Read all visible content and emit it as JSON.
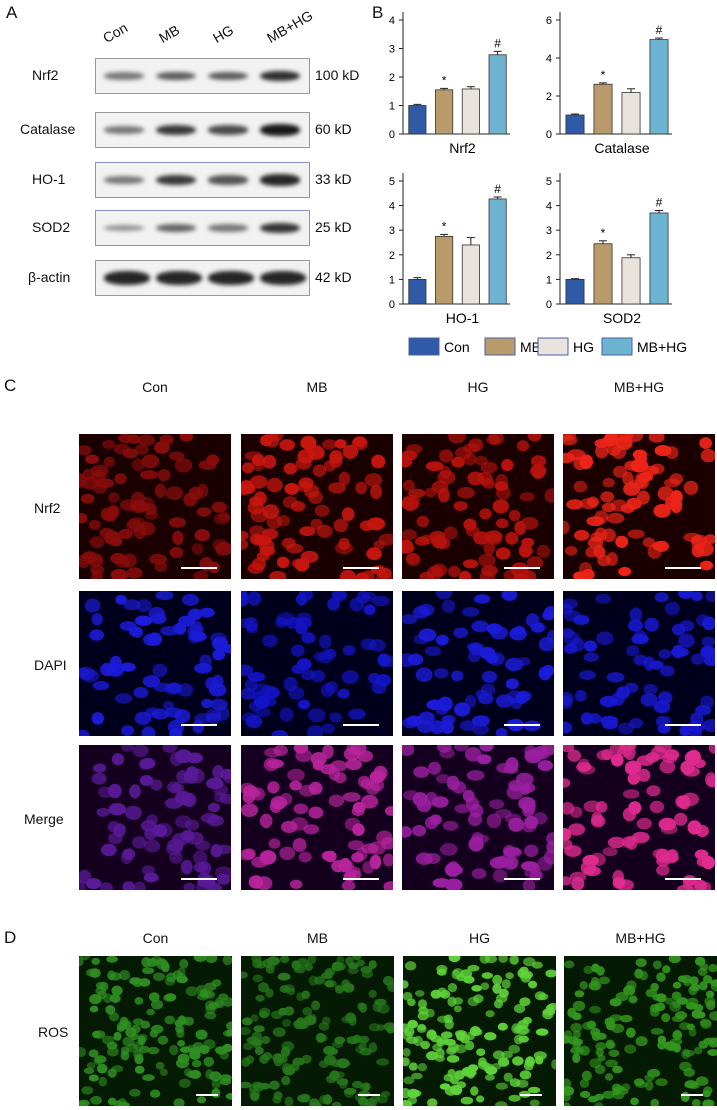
{
  "panelA": {
    "letter": "A",
    "lanes": [
      "Con",
      "MB",
      "HG",
      "MB+HG"
    ],
    "blots": [
      {
        "protein": "Nrf2",
        "size": "100 kD",
        "intensity": [
          0.45,
          0.6,
          0.6,
          0.85
        ]
      },
      {
        "protein": "Catalase",
        "size": "60 kD",
        "intensity": [
          0.45,
          0.8,
          0.7,
          0.98
        ]
      },
      {
        "protein": "HO-1",
        "size": "33 kD",
        "intensity": [
          0.45,
          0.8,
          0.65,
          0.9
        ]
      },
      {
        "protein": "SOD2",
        "size": "25 kD",
        "intensity": [
          0.3,
          0.55,
          0.45,
          0.82
        ]
      },
      {
        "protein": "β-actin",
        "size": "42 kD",
        "intensity": [
          0.9,
          0.9,
          0.9,
          0.9
        ]
      }
    ]
  },
  "panelB": {
    "letter": "B"
  },
  "chart_data": [
    {
      "type": "bar",
      "title": "Nrf2",
      "categories": [
        "Con",
        "MB",
        "HG",
        "MB+HG"
      ],
      "values": [
        1.0,
        1.55,
        1.58,
        2.78
      ],
      "errors": [
        0.04,
        0.05,
        0.08,
        0.12
      ],
      "marks": [
        "",
        "*",
        "",
        "#"
      ],
      "ylim": [
        0,
        4
      ],
      "yticks": [
        0,
        1,
        2,
        3,
        4
      ]
    },
    {
      "type": "bar",
      "title": "Catalase",
      "categories": [
        "Con",
        "MB",
        "HG",
        "MB+HG"
      ],
      "values": [
        1.0,
        2.62,
        2.18,
        4.97
      ],
      "errors": [
        0.05,
        0.07,
        0.2,
        0.08
      ],
      "marks": [
        "",
        "*",
        "",
        "#"
      ],
      "ylim": [
        0,
        6
      ],
      "yticks": [
        0,
        2,
        4,
        6
      ]
    },
    {
      "type": "bar",
      "title": "HO-1",
      "categories": [
        "Con",
        "MB",
        "HG",
        "MB+HG"
      ],
      "values": [
        1.0,
        2.75,
        2.4,
        4.27
      ],
      "errors": [
        0.07,
        0.08,
        0.3,
        0.08
      ],
      "marks": [
        "",
        "*",
        "",
        "#"
      ],
      "ylim": [
        0,
        5
      ],
      "yticks": [
        0,
        1,
        2,
        3,
        4,
        5
      ]
    },
    {
      "type": "bar",
      "title": "SOD2",
      "categories": [
        "Con",
        "MB",
        "HG",
        "MB+HG"
      ],
      "values": [
        1.0,
        2.45,
        1.88,
        3.7
      ],
      "errors": [
        0.03,
        0.12,
        0.12,
        0.1
      ],
      "marks": [
        "",
        "*",
        "",
        "#"
      ],
      "ylim": [
        0,
        5
      ],
      "yticks": [
        0,
        1,
        2,
        3,
        4,
        5
      ]
    }
  ],
  "legend": [
    {
      "label": "Con",
      "color": "#2f5aa8"
    },
    {
      "label": "MB",
      "color": "#b89a6b"
    },
    {
      "label": "HG",
      "color": "#e8e3dc"
    },
    {
      "label": "MB+HG",
      "color": "#6cb4d1"
    }
  ],
  "panelC": {
    "letter": "C",
    "columns": [
      "Con",
      "MB",
      "HG",
      "MB+HG"
    ],
    "rows": [
      {
        "label": "Nrf2",
        "colors": [
          "#8a0c0c",
          "#c8160f",
          "#b8120d",
          "#ee2418"
        ]
      },
      {
        "label": "DAPI",
        "colors": [
          "#1b1bd9",
          "#1414c8",
          "#1b1bd9",
          "#1818d0"
        ]
      },
      {
        "label": "Merge",
        "colors": [
          "#5a1a98",
          "#b8249c",
          "#9a1fa0",
          "#e02a8e"
        ]
      }
    ]
  },
  "panelD": {
    "letter": "D",
    "columns": [
      "Con",
      "MB",
      "HG",
      "MB+HG"
    ],
    "row_label": "ROS",
    "colors": [
      "#2f8f22",
      "#27781c",
      "#5fd33a",
      "#33961f"
    ]
  }
}
